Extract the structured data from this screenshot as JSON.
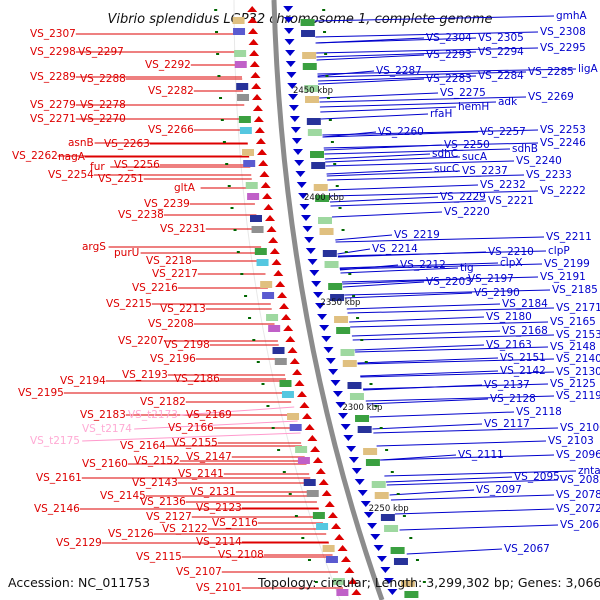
{
  "title": "Vibrio splendidus LGP32 chromosome 1, complete genome",
  "accession": "Accession: NC_011753",
  "topology": "Topology: circular; Length: 3,299,302 bp; Genes: 3,066",
  "colors": {
    "plus": "#dd0000",
    "minus": "#0000cc",
    "pink": "#ff99cc",
    "pink_text": "#ffaad4",
    "axis": "#888888",
    "tick": "#006600"
  },
  "kbp_labels": [
    "2450 kbp",
    "2400 kbp",
    "2350 kbp",
    "2300 kbp",
    "2250 kbp"
  ],
  "left_labels": [
    [
      "VS_2307",
      30,
      37,
      "r"
    ],
    [
      "VS_2298",
      30,
      55,
      "r"
    ],
    [
      "VS_2297",
      78,
      55,
      "r"
    ],
    [
      "VS_2292",
      145,
      68,
      "r"
    ],
    [
      "VS_2289",
      30,
      80,
      "r"
    ],
    [
      "VS_2288",
      80,
      82,
      "r"
    ],
    [
      "VS_2282",
      148,
      94,
      "r"
    ],
    [
      "VS_2279",
      30,
      108,
      "r"
    ],
    [
      "VS_2278",
      80,
      108,
      "r"
    ],
    [
      "VS_2271",
      30,
      122,
      "r"
    ],
    [
      "VS_2270",
      80,
      122,
      "r"
    ],
    [
      "VS_2266",
      148,
      133,
      "r"
    ],
    [
      "asnB",
      68,
      146,
      "r"
    ],
    [
      "VS_2263",
      104,
      147,
      "r"
    ],
    [
      "VS_2262",
      12,
      159,
      "r"
    ],
    [
      "nagA",
      58,
      160,
      "r"
    ],
    [
      "fur",
      90,
      170,
      "r"
    ],
    [
      "VS_2256",
      114,
      168,
      "r"
    ],
    [
      "VS_2254",
      48,
      178,
      "r"
    ],
    [
      "VS_2251",
      98,
      182,
      "r"
    ],
    [
      "gltA",
      174,
      191,
      "r"
    ],
    [
      "VS_2239",
      144,
      207,
      "r"
    ],
    [
      "VS_2238",
      118,
      218,
      "r"
    ],
    [
      "VS_2231",
      160,
      232,
      "r"
    ],
    [
      "argS",
      82,
      250,
      "r"
    ],
    [
      "purU",
      114,
      256,
      "r"
    ],
    [
      "VS_2218",
      146,
      264,
      "r"
    ],
    [
      "VS_2217",
      152,
      277,
      "r"
    ],
    [
      "VS_2216",
      132,
      291,
      "r"
    ],
    [
      "VS_2215",
      106,
      307,
      "r"
    ],
    [
      "VS_2213",
      160,
      312,
      "r"
    ],
    [
      "VS_2208",
      148,
      327,
      "r"
    ],
    [
      "VS_2207",
      118,
      344,
      "r"
    ],
    [
      "VS_2198",
      164,
      348,
      "r"
    ],
    [
      "VS_2196",
      150,
      362,
      "r"
    ],
    [
      "VS_2193",
      122,
      378,
      "r"
    ],
    [
      "VS_2194",
      60,
      384,
      "r"
    ],
    [
      "VS_2186",
      174,
      382,
      "r"
    ],
    [
      "VS_2195",
      18,
      396,
      "r"
    ],
    [
      "VS_2182",
      140,
      405,
      "r"
    ],
    [
      "VS_2183",
      80,
      418,
      "r"
    ],
    [
      "VS_t2173",
      128,
      418,
      "p"
    ],
    [
      "VS_2169",
      186,
      418,
      "r"
    ],
    [
      "VS_t2174",
      82,
      432,
      "p"
    ],
    [
      "VS_2166",
      168,
      431,
      "r"
    ],
    [
      "VS_t2175",
      30,
      444,
      "p"
    ],
    [
      "VS_2164",
      120,
      449,
      "r"
    ],
    [
      "VS_2155",
      172,
      446,
      "r"
    ],
    [
      "VS_2147",
      186,
      460,
      "r"
    ],
    [
      "VS_2160",
      82,
      467,
      "r"
    ],
    [
      "VS_2152",
      134,
      464,
      "r"
    ],
    [
      "VS_2141",
      178,
      477,
      "r"
    ],
    [
      "VS_2161",
      36,
      481,
      "r"
    ],
    [
      "VS_2143",
      132,
      486,
      "r"
    ],
    [
      "VS_2131",
      190,
      495,
      "r"
    ],
    [
      "VS_2145",
      100,
      499,
      "r"
    ],
    [
      "VS_2136",
      140,
      505,
      "r"
    ],
    [
      "VS_2123",
      196,
      511,
      "r"
    ],
    [
      "VS_2146",
      34,
      512,
      "r"
    ],
    [
      "VS_2127",
      146,
      520,
      "r"
    ],
    [
      "VS_2116",
      212,
      526,
      "r"
    ],
    [
      "VS_2122",
      162,
      532,
      "r"
    ],
    [
      "VS_2126",
      108,
      537,
      "r"
    ],
    [
      "VS_2114",
      196,
      545,
      "r"
    ],
    [
      "VS_2129",
      56,
      546,
      "r"
    ],
    [
      "VS_2108",
      218,
      558,
      "r"
    ],
    [
      "VS_2115",
      136,
      560,
      "r"
    ],
    [
      "VS_2107",
      176,
      575,
      "r"
    ],
    [
      "VS_2101",
      196,
      591,
      "r"
    ]
  ],
  "right_labels": [
    [
      "gmhA",
      556,
      19,
      "b"
    ],
    [
      "VS_2304",
      426,
      41,
      "b"
    ],
    [
      "VS_2305",
      478,
      41,
      "b"
    ],
    [
      "VS_2308",
      540,
      35,
      "b"
    ],
    [
      "VS_2293",
      426,
      58,
      "b"
    ],
    [
      "VS_2294",
      478,
      55,
      "b"
    ],
    [
      "VS_2295",
      540,
      51,
      "b"
    ],
    [
      "VS_2287",
      376,
      74,
      "b"
    ],
    [
      "ligA",
      578,
      72,
      "b"
    ],
    [
      "VS_2283",
      426,
      82,
      "b"
    ],
    [
      "VS_2284",
      478,
      79,
      "b"
    ],
    [
      "VS_2285",
      528,
      75,
      "b"
    ],
    [
      "VS_2275",
      440,
      96,
      "b"
    ],
    [
      "VS_2269",
      528,
      100,
      "b"
    ],
    [
      "adk",
      498,
      105,
      "b"
    ],
    [
      "hemH",
      458,
      110,
      "b"
    ],
    [
      "rfaH",
      430,
      117,
      "b"
    ],
    [
      "VS_2253",
      540,
      133,
      "b"
    ],
    [
      "VS_2260",
      378,
      135,
      "b"
    ],
    [
      "VS_2257",
      480,
      135,
      "b"
    ],
    [
      "VS_2250",
      444,
      148,
      "b"
    ],
    [
      "VS_2246",
      540,
      146,
      "b"
    ],
    [
      "sdhB",
      512,
      152,
      "b"
    ],
    [
      "sdhC",
      432,
      157,
      "b"
    ],
    [
      "sucA",
      462,
      160,
      "b"
    ],
    [
      "VS_2240",
      516,
      164,
      "b"
    ],
    [
      "sucC",
      434,
      172,
      "b"
    ],
    [
      "VS_2237",
      462,
      174,
      "b"
    ],
    [
      "VS_2233",
      526,
      178,
      "b"
    ],
    [
      "VS_2232",
      480,
      188,
      "b"
    ],
    [
      "VS_2222",
      540,
      194,
      "b"
    ],
    [
      "VS_2229",
      440,
      200,
      "b"
    ],
    [
      "VS_2221",
      488,
      204,
      "b"
    ],
    [
      "VS_2220",
      444,
      215,
      "b"
    ],
    [
      "VS_2211",
      546,
      240,
      "b"
    ],
    [
      "VS_2219",
      394,
      238,
      "b"
    ],
    [
      "VS_2214",
      372,
      252,
      "b"
    ],
    [
      "VS_2210",
      488,
      255,
      "b"
    ],
    [
      "clpP",
      548,
      254,
      "b"
    ],
    [
      "VS_2212",
      400,
      268,
      "b"
    ],
    [
      "tig",
      460,
      271,
      "b"
    ],
    [
      "clpX",
      500,
      266,
      "b"
    ],
    [
      "VS_2199",
      544,
      267,
      "b"
    ],
    [
      "VS_2203",
      426,
      285,
      "b"
    ],
    [
      "VS_2197",
      468,
      282,
      "b"
    ],
    [
      "VS_2191",
      540,
      280,
      "b"
    ],
    [
      "VS_2190",
      474,
      296,
      "b"
    ],
    [
      "VS_2185",
      552,
      293,
      "b"
    ],
    [
      "VS_2184",
      502,
      307,
      "b"
    ],
    [
      "VS_2171",
      556,
      311,
      "b"
    ],
    [
      "VS_2180",
      486,
      320,
      "b"
    ],
    [
      "VS_2165",
      550,
      325,
      "b"
    ],
    [
      "VS_2168",
      502,
      334,
      "b"
    ],
    [
      "VS_2153",
      556,
      338,
      "b"
    ],
    [
      "VS_2163",
      486,
      348,
      "b"
    ],
    [
      "VS_2148",
      550,
      350,
      "b"
    ],
    [
      "VS_2151",
      500,
      361,
      "b"
    ],
    [
      "VS_2140",
      556,
      362,
      "b"
    ],
    [
      "VS_2142",
      500,
      374,
      "b"
    ],
    [
      "VS_2130",
      556,
      375,
      "b"
    ],
    [
      "VS_2137",
      484,
      388,
      "b"
    ],
    [
      "VS_2125",
      550,
      387,
      "b"
    ],
    [
      "VS_2119",
      556,
      399,
      "b"
    ],
    [
      "VS_2128",
      490,
      402,
      "b"
    ],
    [
      "VS_2118",
      516,
      415,
      "b"
    ],
    [
      "VS_2117",
      484,
      427,
      "b"
    ],
    [
      "VS_2106",
      560,
      431,
      "b"
    ],
    [
      "VS_2103",
      548,
      444,
      "b"
    ],
    [
      "VS_2111",
      458,
      458,
      "b"
    ],
    [
      "VS_2096",
      556,
      458,
      "b"
    ],
    [
      "VS_2095",
      514,
      480,
      "b"
    ],
    [
      "znta",
      578,
      474,
      "b"
    ],
    [
      "VS_2082",
      560,
      483,
      "b"
    ],
    [
      "VS_2097",
      476,
      493,
      "b"
    ],
    [
      "VS_2078",
      556,
      498,
      "b"
    ],
    [
      "VS_2072",
      556,
      512,
      "b"
    ],
    [
      "VS_2065",
      560,
      528,
      "b"
    ],
    [
      "VS_2067",
      504,
      552,
      "b"
    ]
  ]
}
